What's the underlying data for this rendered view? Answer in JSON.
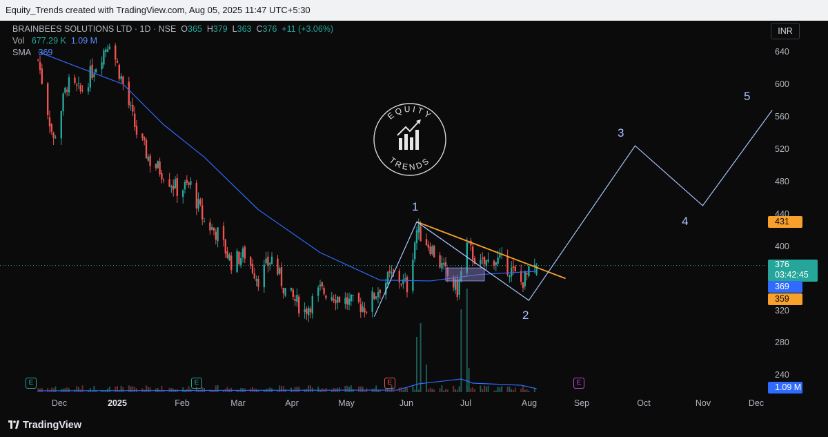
{
  "header": {
    "attribution": "Equity_Trends created with TradingView.com, Aug 05, 2025 11:47 UTC+5:30"
  },
  "legend": {
    "symbol": "BRAINBEES SOLUTIONS LTD · 1D · NSE",
    "o_label": "O",
    "o": "365",
    "h_label": "H",
    "h": "379",
    "l_label": "L",
    "l": "363",
    "c_label": "C",
    "c": "376",
    "change": "+11 (+3.06%)",
    "vol_label": "Vol",
    "vol1": "677.29 K",
    "vol2": "1.09 M",
    "sma_label": "SMA",
    "sma": "369"
  },
  "currency": "INR",
  "price_axis": {
    "ticks": [
      "640",
      "600",
      "560",
      "520",
      "480",
      "440",
      "400",
      "320",
      "280",
      "240"
    ]
  },
  "time_axis": {
    "ticks": [
      "Dec",
      "2025",
      "Feb",
      "Mar",
      "Apr",
      "May",
      "Jun",
      "Jul",
      "Aug",
      "Sep",
      "Oct",
      "Nov",
      "Dec"
    ]
  },
  "badges": {
    "alert": "431",
    "last": "376",
    "countdown": "03:42:45",
    "sma": "369",
    "level": "359",
    "volume": "1.09 M"
  },
  "waves": [
    "1",
    "2",
    "3",
    "4",
    "5"
  ],
  "watermark": {
    "top": "EQUITY",
    "bottom": "TRENDS"
  },
  "earnings_label": "E",
  "footer": {
    "brand": "TradingView"
  },
  "colors": {
    "up": "#26a69a",
    "down": "#ef5350",
    "sma": "#2f6bff",
    "trendline": "#f7a12c",
    "wave": "#a9c4ff"
  },
  "chart_data": {
    "type": "candlestick",
    "symbol": "BRAINBEES SOLUTIONS LTD",
    "interval": "1D",
    "exchange": "NSE",
    "currency": "INR",
    "ylim": [
      220,
      670
    ],
    "last": {
      "open": 365,
      "high": 379,
      "low": 363,
      "close": 376,
      "change": 11,
      "change_pct": 3.06
    },
    "close_path": [
      {
        "date": "2024-11-20",
        "close": 630
      },
      {
        "date": "2024-11-28",
        "close": 530
      },
      {
        "date": "2024-12-05",
        "close": 600
      },
      {
        "date": "2024-12-12",
        "close": 590
      },
      {
        "date": "2024-12-19",
        "close": 620
      },
      {
        "date": "2024-12-27",
        "close": 655
      },
      {
        "date": "2025-01-03",
        "close": 600
      },
      {
        "date": "2025-01-10",
        "close": 540
      },
      {
        "date": "2025-01-17",
        "close": 505
      },
      {
        "date": "2025-01-24",
        "close": 490
      },
      {
        "date": "2025-01-31",
        "close": 470
      },
      {
        "date": "2025-02-07",
        "close": 475
      },
      {
        "date": "2025-02-14",
        "close": 430
      },
      {
        "date": "2025-02-21",
        "close": 415
      },
      {
        "date": "2025-02-28",
        "close": 380
      },
      {
        "date": "2025-03-07",
        "close": 390
      },
      {
        "date": "2025-03-14",
        "close": 360
      },
      {
        "date": "2025-03-21",
        "close": 385
      },
      {
        "date": "2025-03-28",
        "close": 345
      },
      {
        "date": "2025-04-07",
        "close": 320
      },
      {
        "date": "2025-04-15",
        "close": 345
      },
      {
        "date": "2025-04-22",
        "close": 340
      },
      {
        "date": "2025-04-30",
        "close": 330
      },
      {
        "date": "2025-05-09",
        "close": 325
      },
      {
        "date": "2025-05-16",
        "close": 350
      },
      {
        "date": "2025-05-23",
        "close": 365
      },
      {
        "date": "2025-05-30",
        "close": 350
      },
      {
        "date": "2025-06-04",
        "close": 420
      },
      {
        "date": "2025-06-11",
        "close": 400
      },
      {
        "date": "2025-06-18",
        "close": 370
      },
      {
        "date": "2025-06-25",
        "close": 345
      },
      {
        "date": "2025-06-30",
        "close": 400
      },
      {
        "date": "2025-07-07",
        "close": 375
      },
      {
        "date": "2025-07-14",
        "close": 385
      },
      {
        "date": "2025-07-21",
        "close": 375
      },
      {
        "date": "2025-07-28",
        "close": 355
      },
      {
        "date": "2025-08-05",
        "close": 376
      }
    ],
    "sma": [
      {
        "date": "2024-11-20",
        "value": 640
      },
      {
        "date": "2024-12-12",
        "value": 620
      },
      {
        "date": "2025-01-03",
        "value": 600
      },
      {
        "date": "2025-01-24",
        "value": 550
      },
      {
        "date": "2025-02-14",
        "value": 510
      },
      {
        "date": "2025-03-14",
        "value": 445
      },
      {
        "date": "2025-04-15",
        "value": 392
      },
      {
        "date": "2025-05-16",
        "value": 358
      },
      {
        "date": "2025-06-11",
        "value": 357
      },
      {
        "date": "2025-07-07",
        "value": 365
      },
      {
        "date": "2025-08-05",
        "value": 369
      }
    ],
    "trendline": [
      {
        "date": "2025-06-04",
        "value": 430
      },
      {
        "date": "2025-08-20",
        "value": 360
      }
    ],
    "elliott_waves": [
      {
        "label": "start",
        "date": "2025-05-13",
        "value": 313
      },
      {
        "label": "1",
        "date": "2025-06-04",
        "value": 430
      },
      {
        "label": "2",
        "date": "2025-08-01",
        "value": 333
      },
      {
        "label": "3",
        "date": "2025-09-25",
        "value": 524
      },
      {
        "label": "4",
        "date": "2025-10-30",
        "value": 450
      },
      {
        "label": "5",
        "date": "2025-12-05",
        "value": 568
      }
    ],
    "volume_last": "1.09 M"
  }
}
